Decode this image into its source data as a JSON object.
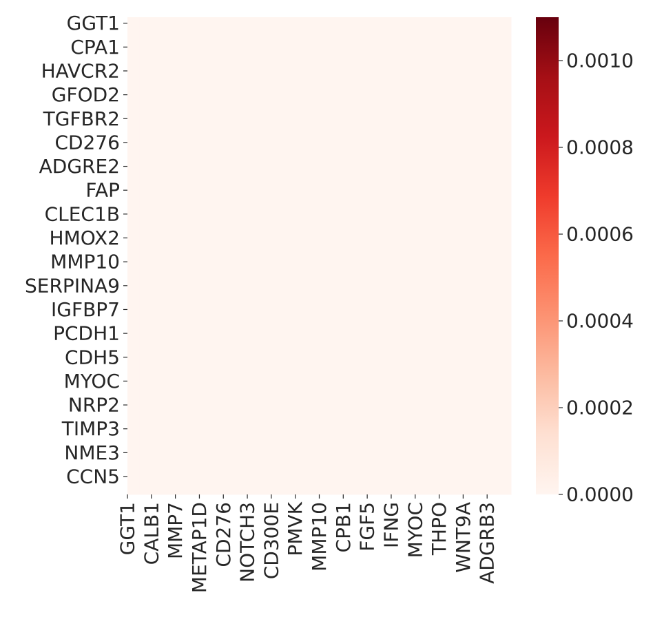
{
  "chart_data": {
    "type": "heatmap",
    "title": "",
    "xlabel": "",
    "ylabel": "",
    "x_tick_labels": [
      "GGT1",
      "CALB1",
      "MMP7",
      "METAP1D",
      "CD276",
      "NOTCH3",
      "CD300E",
      "PMVK",
      "MMP10",
      "CPB1",
      "FGF5",
      "IFNG",
      "MYOC",
      "THPO",
      "WNT9A",
      "ADGRB3"
    ],
    "y_tick_labels": [
      "GGT1",
      "CPA1",
      "HAVCR2",
      "GFOD2",
      "TGFBR2",
      "CD276",
      "ADGRE2",
      "FAP",
      "CLEC1B",
      "HMOX2",
      "MMP10",
      "SERPINA9",
      "IGFBP7",
      "PCDH1",
      "CDH5",
      "MYOC",
      "NRP2",
      "TIMP3",
      "NME3",
      "CCN5"
    ],
    "n_columns": 32,
    "n_rows": 40,
    "uniform_value": 0.0,
    "colormap": "Reds",
    "colormap_stops": [
      "#fff5f0",
      "#fee0d2",
      "#fcbba1",
      "#fc9272",
      "#fb6a4a",
      "#ef3b2c",
      "#cb181d",
      "#a50f15",
      "#67000d"
    ],
    "colorbar": {
      "range": [
        0.0,
        0.0011
      ],
      "ticks": [
        0.0,
        0.0002,
        0.0004,
        0.0006,
        0.0008,
        0.001
      ],
      "tick_labels": [
        "0.0000",
        "0.0002",
        "0.0004",
        "0.0006",
        "0.0008",
        "0.0010"
      ]
    }
  }
}
